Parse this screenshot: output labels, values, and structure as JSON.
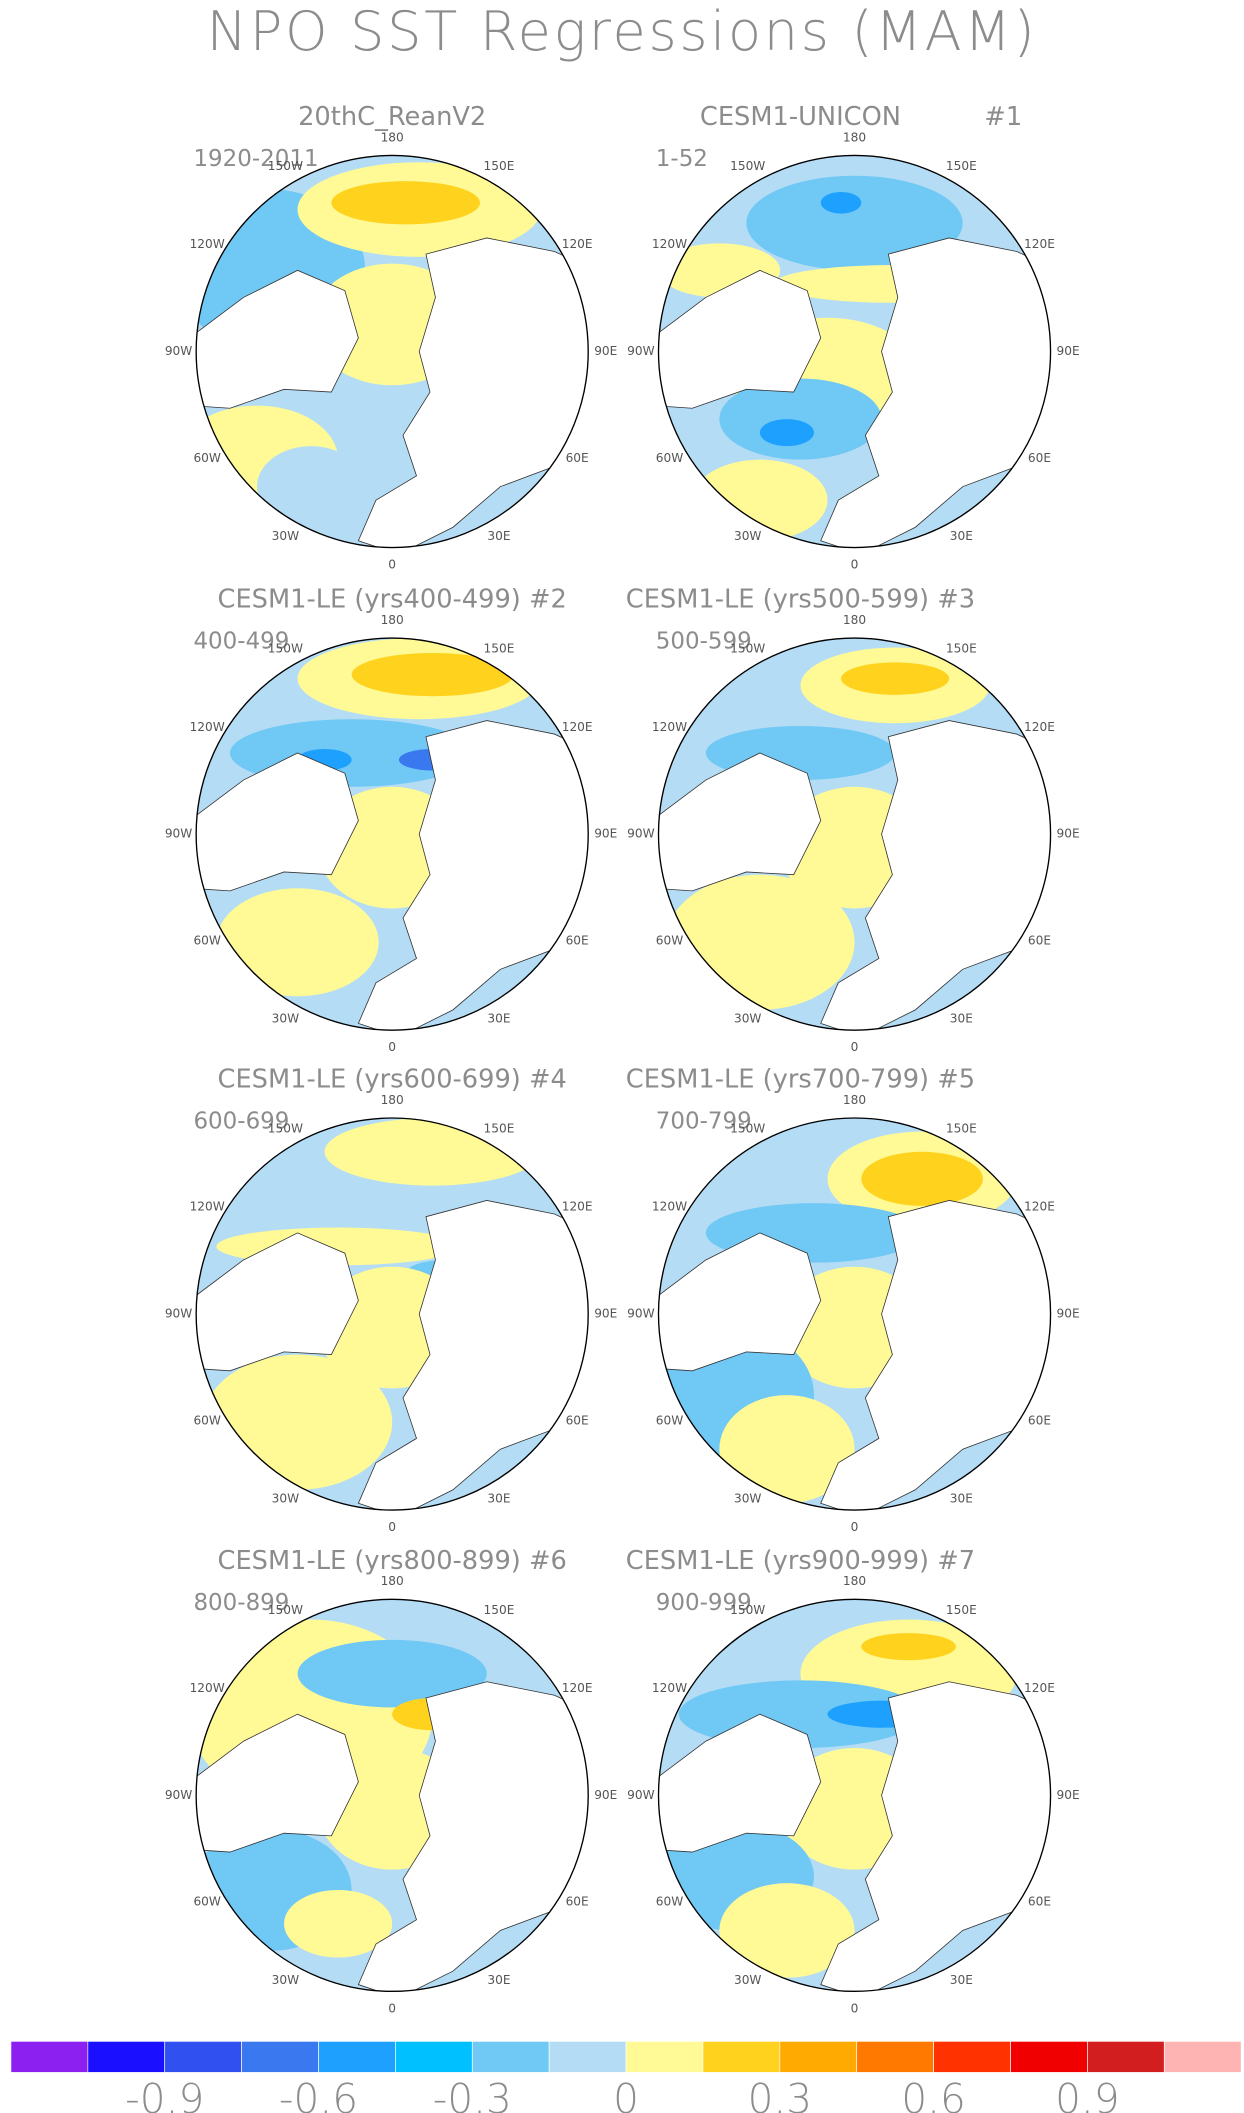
{
  "title": "NPO SST Regressions (MAM)",
  "longitude_labels": [
    "180",
    "150E",
    "120E",
    "90E",
    "60E",
    "30E",
    "0",
    "30W",
    "60W",
    "90W",
    "120W",
    "150W"
  ],
  "panels": [
    {
      "title": "20thC_ReanV2",
      "period": "1920-2011"
    },
    {
      "title": "CESM1-UNICON",
      "tag": "#1",
      "period": "1-52"
    },
    {
      "title": "CESM1-LE (yrs400-499) #2",
      "period": "400-499"
    },
    {
      "title": "CESM1-LE (yrs500-599) #3",
      "period": "500-599"
    },
    {
      "title": "CESM1-LE (yrs600-699) #4",
      "period": "600-699"
    },
    {
      "title": "CESM1-LE (yrs700-799) #5",
      "period": "700-799"
    },
    {
      "title": "CESM1-LE (yrs800-899) #6",
      "period": "800-899"
    },
    {
      "title": "CESM1-LE (yrs900-999) #7",
      "period": "900-999"
    }
  ],
  "colorbar": {
    "colors": [
      "#8b20f0",
      "#1a10ff",
      "#3050f0",
      "#3a78f0",
      "#1ea0ff",
      "#00c0ff",
      "#70c8f5",
      "#b4dcf5",
      "#fffa96",
      "#ffd21e",
      "#ffaa00",
      "#ff7800",
      "#ff3200",
      "#f00000",
      "#d21e1e",
      "#ffb4b4"
    ],
    "xlim": [
      -1.2,
      1.2
    ],
    "xticks": [
      -0.9,
      -0.6,
      -0.3,
      0,
      0.3,
      0.6,
      0.9
    ]
  }
}
